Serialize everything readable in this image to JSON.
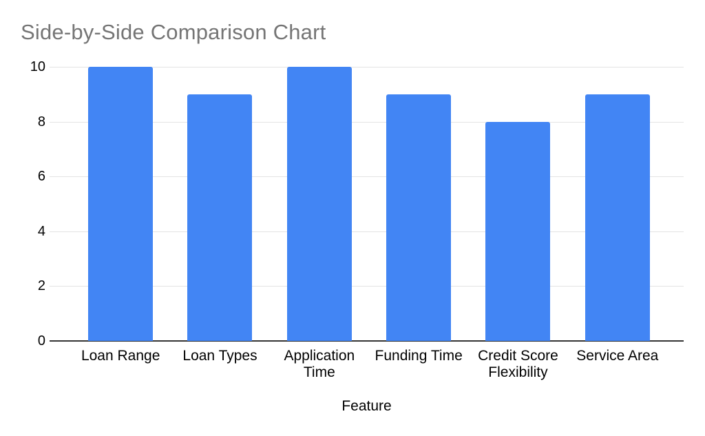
{
  "chart_data": {
    "type": "bar",
    "title": "Side-by-Side Comparison Chart",
    "categories": [
      "Loan Range",
      "Loan Types",
      "Application Time",
      "Funding Time",
      "Credit Score Flexibility",
      "Service Area"
    ],
    "values": [
      10,
      9,
      10,
      9,
      8,
      9
    ],
    "xlabel": "Feature",
    "ylabel": "",
    "ylim": [
      0,
      10
    ],
    "yticks": [
      0,
      2,
      4,
      6,
      8,
      10
    ],
    "grid": true,
    "legend_position": "none",
    "colors": {
      "bar": "#4285f4",
      "title": "#757575",
      "gridline": "#e3e3e3",
      "baseline": "#333333",
      "axis_label": "#000000"
    }
  }
}
